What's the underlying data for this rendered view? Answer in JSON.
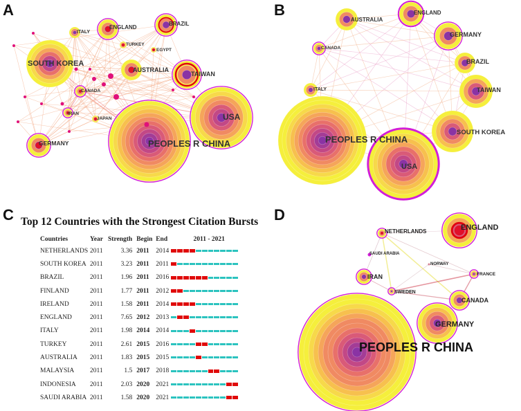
{
  "panels": {
    "A": {
      "label": "A"
    },
    "B": {
      "label": "B"
    },
    "C": {
      "label": "C"
    },
    "D": {
      "label": "D"
    }
  },
  "network_a": {
    "nodes": [
      "SOUTH KOREA",
      "ENGLAND",
      "BRAZIL",
      "ITALY",
      "TURKEY",
      "EGYPT",
      "AUSTRALIA",
      "TAIWAN",
      "CANADA",
      "USA",
      "IRAN",
      "JAPAN",
      "GERMANY",
      "PEOPLES R CHINA"
    ]
  },
  "network_b": {
    "nodes": [
      "AUSTRALIA",
      "ENGLAND",
      "CANADA",
      "GERMANY",
      "BRAZIL",
      "ITALY",
      "TAIWAN",
      "PEOPLES R CHINA",
      "SOUTH KOREA",
      "USA"
    ]
  },
  "network_d": {
    "nodes": [
      "NETHERLANDS",
      "ENGLAND",
      "SAUDI ARABIA",
      "NORWAY",
      "IRAN",
      "FRANCE",
      "SWEDEN",
      "CANADA",
      "GERMANY",
      "PEOPLES R CHINA"
    ]
  },
  "chart_data": {
    "type": "table",
    "title": "Top 12 Countries with the Strongest Citation Bursts",
    "columns": [
      "Countries",
      "Year",
      "Strength",
      "Begin",
      "End",
      "2011 - 2021"
    ],
    "range": [
      2011,
      2021
    ],
    "rows": [
      {
        "country": "NETHERLANDS",
        "year": "2011",
        "strength": "3.36",
        "begin": "2011",
        "end": "2014"
      },
      {
        "country": "SOUTH KOREA",
        "year": "2011",
        "strength": "3.23",
        "begin": "2011",
        "end": "2011"
      },
      {
        "country": "BRAZIL",
        "year": "2011",
        "strength": "1.96",
        "begin": "2011",
        "end": "2016"
      },
      {
        "country": "FINLAND",
        "year": "2011",
        "strength": "1.77",
        "begin": "2011",
        "end": "2012"
      },
      {
        "country": "IRELAND",
        "year": "2011",
        "strength": "1.58",
        "begin": "2011",
        "end": "2014"
      },
      {
        "country": "ENGLAND",
        "year": "2011",
        "strength": "7.65",
        "begin": "2012",
        "end": "2013"
      },
      {
        "country": "ITALY",
        "year": "2011",
        "strength": "1.98",
        "begin": "2014",
        "end": "2014"
      },
      {
        "country": "TURKEY",
        "year": "2011",
        "strength": "2.61",
        "begin": "2015",
        "end": "2016"
      },
      {
        "country": "AUSTRALIA",
        "year": "2011",
        "strength": "1.83",
        "begin": "2015",
        "end": "2015"
      },
      {
        "country": "MALAYSIA",
        "year": "2011",
        "strength": "1.5",
        "begin": "2017",
        "end": "2018"
      },
      {
        "country": "INDONESIA",
        "year": "2011",
        "strength": "2.03",
        "begin": "2020",
        "end": "2021"
      },
      {
        "country": "SAUDI ARABIA",
        "year": "2011",
        "strength": "1.58",
        "begin": "2020",
        "end": "2021"
      }
    ]
  }
}
